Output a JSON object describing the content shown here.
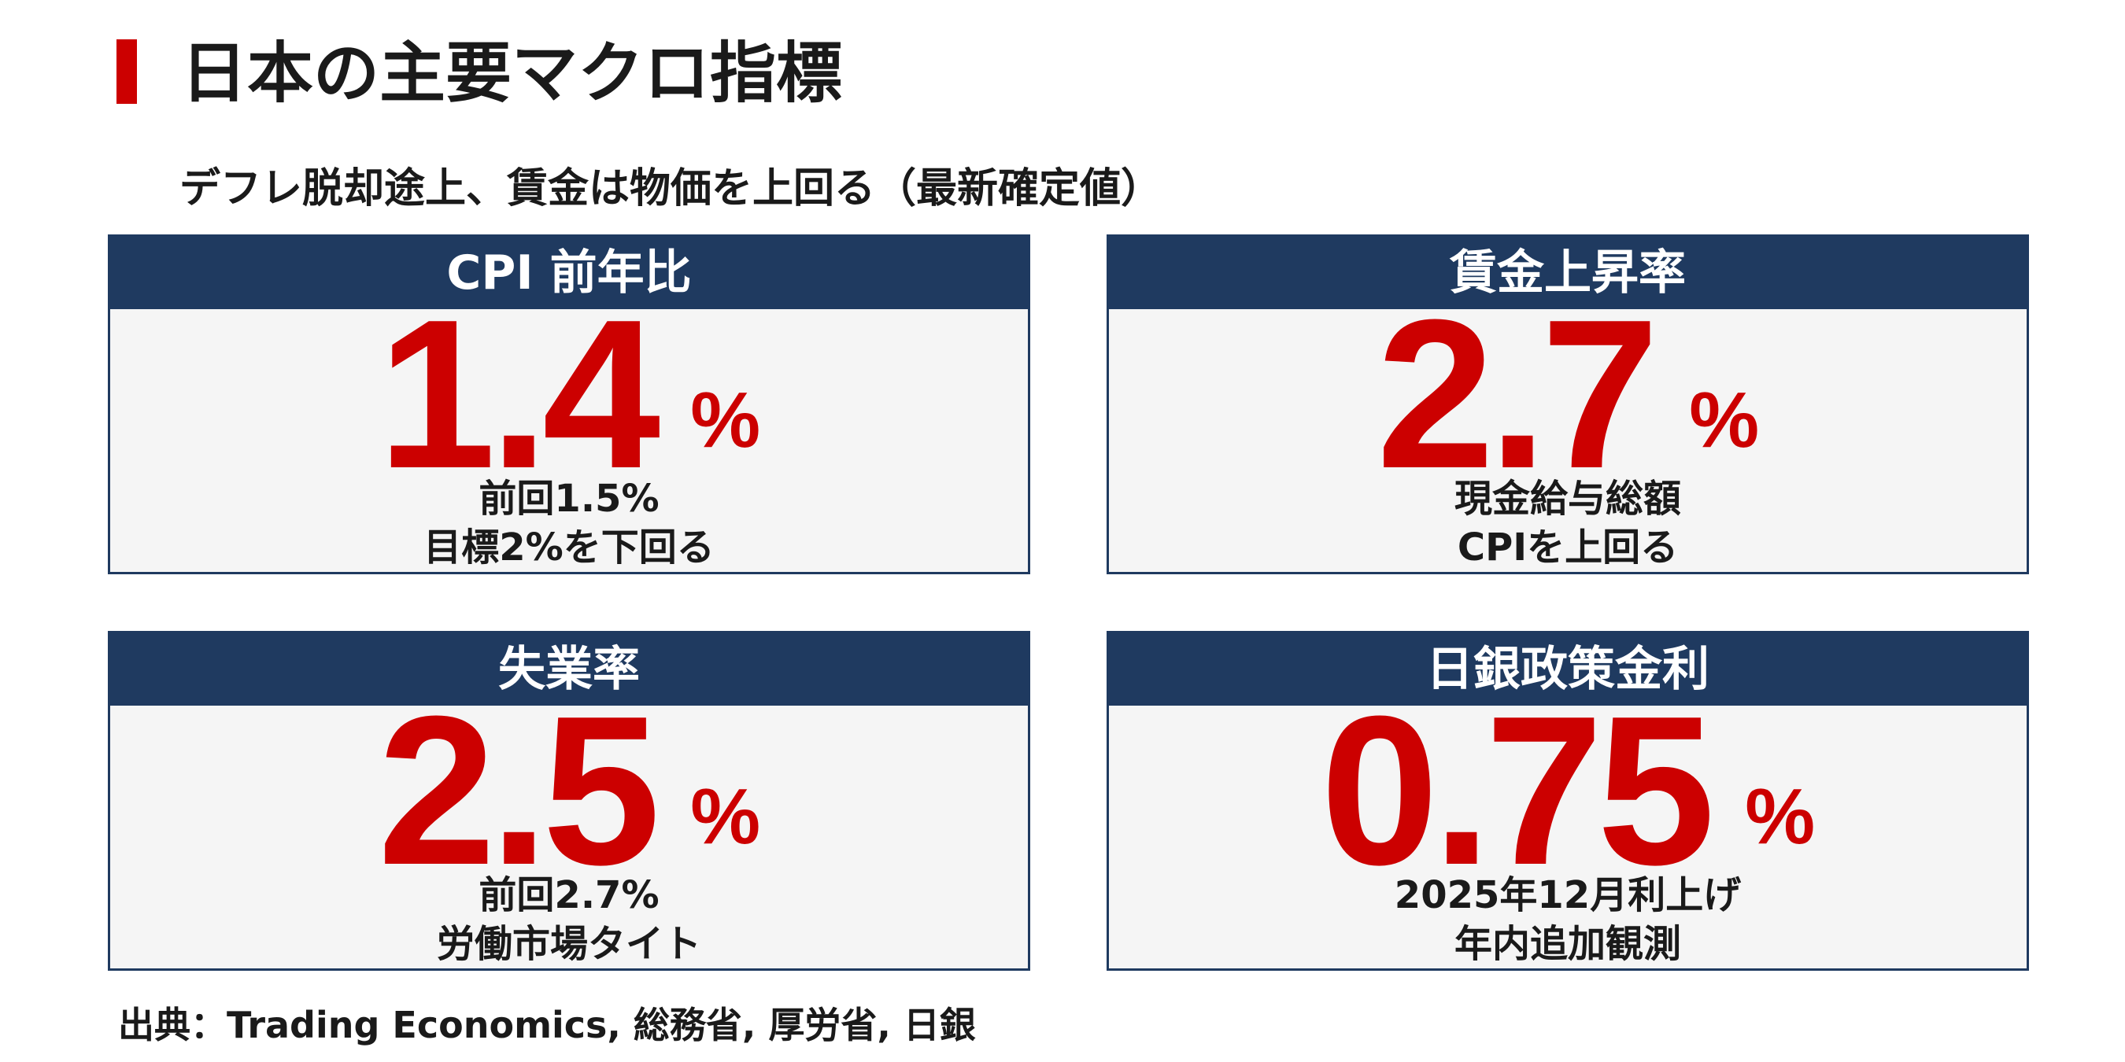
{
  "colors": {
    "accent_red": "#cc0000",
    "header_navy": "#1f3a60",
    "card_bg": "#f5f5f5"
  },
  "title": "日本の主要マクロ指標",
  "subtitle": "デフレ脱却途上、賃金は物価を上回る（最新確定値）",
  "cards": [
    {
      "header": "CPI 前年比",
      "value": "1.4",
      "unit": "%",
      "note_1": "前回1.5%",
      "note_2": "目標2%を下回る"
    },
    {
      "header": "賃金上昇率",
      "value": "2.7",
      "unit": "%",
      "note_1": "現金給与総額",
      "note_2": "CPIを上回る"
    },
    {
      "header": "失業率",
      "value": "2.5",
      "unit": "%",
      "note_1": "前回2.7%",
      "note_2": "労働市場タイト"
    },
    {
      "header": "日銀政策金利",
      "value": "0.75",
      "unit": "%",
      "note_1": "2025年12月利上げ",
      "note_2": "年内追加観測"
    }
  ],
  "source": "出典：Trading Economics, 総務省, 厚労省, 日銀"
}
